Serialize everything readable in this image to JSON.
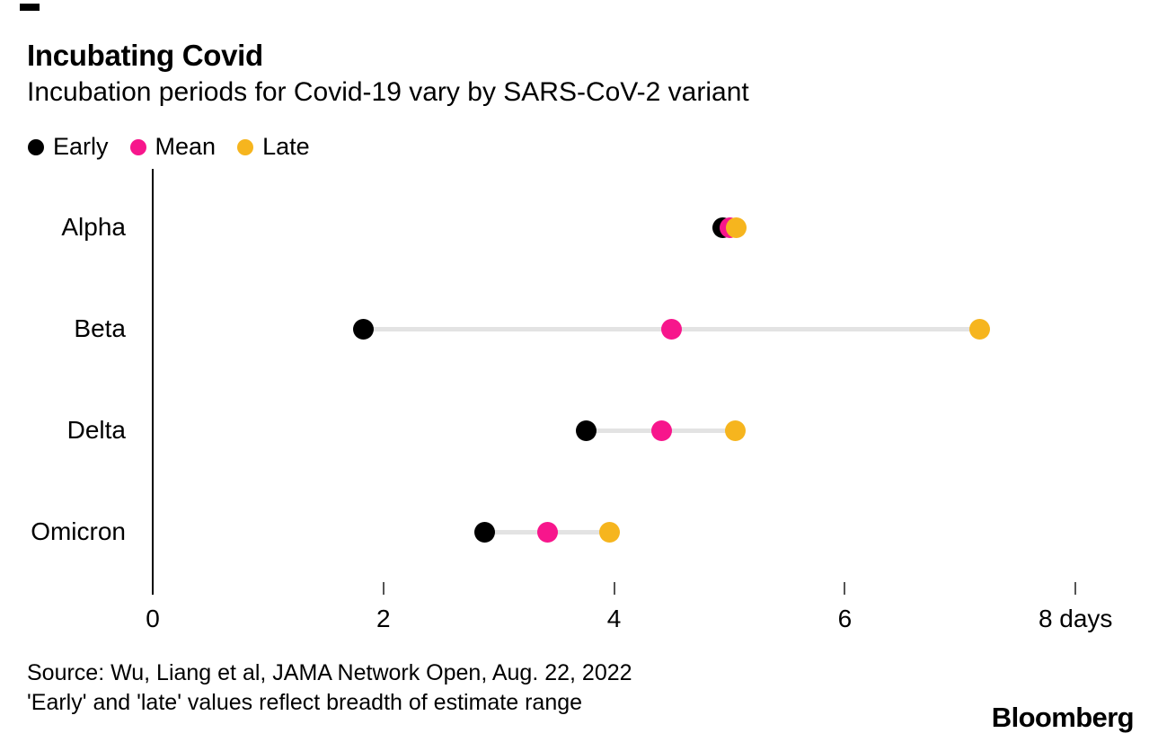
{
  "header": {
    "title": "Incubating Covid",
    "subtitle": "Incubation periods for Covid-19 vary by SARS-CoV-2 variant"
  },
  "legend": [
    {
      "label": "Early",
      "color": "#000000"
    },
    {
      "label": "Mean",
      "color": "#F7168C"
    },
    {
      "label": "Late",
      "color": "#F6B51E"
    }
  ],
  "chart_data": {
    "type": "scatter",
    "subtype": "dot-range",
    "title": "Incubating Covid",
    "subtitle": "Incubation periods for Covid-19 vary by SARS-CoV-2 variant",
    "unit": "days",
    "categories": [
      "Alpha",
      "Beta",
      "Delta",
      "Omicron"
    ],
    "series": [
      {
        "name": "Early",
        "color": "#000000",
        "values": [
          4.94,
          1.83,
          3.76,
          2.88
        ]
      },
      {
        "name": "Mean",
        "color": "#F7168C",
        "values": [
          5.0,
          4.5,
          4.41,
          3.42
        ]
      },
      {
        "name": "Late",
        "color": "#F6B51E",
        "values": [
          5.06,
          7.17,
          5.05,
          3.96
        ]
      }
    ],
    "x_axis": {
      "min": 0,
      "max": 8,
      "ticks": [
        0,
        2,
        4,
        6,
        8
      ],
      "tick_labels": [
        "0",
        "2",
        "4",
        "6",
        "8 days"
      ]
    },
    "grid": false,
    "legend_position": "top-left",
    "connector_color": "#E3E3E3",
    "axis_color": "#000000"
  },
  "footer": {
    "source": "Source: Wu, Liang et al, JAMA Network Open, Aug. 22, 2022",
    "note": "'Early' and 'late' values reflect breadth of estimate range",
    "logo": "Bloomberg"
  }
}
